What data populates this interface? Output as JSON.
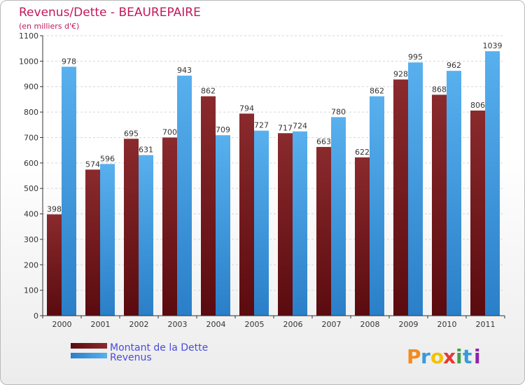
{
  "chart_data": {
    "type": "bar",
    "title": "Revenus/Dette - BEAUREPAIRE",
    "subtitle": "(en milliers d'€)",
    "categories": [
      "2000",
      "2001",
      "2002",
      "2003",
      "2004",
      "2005",
      "2006",
      "2007",
      "2008",
      "2009",
      "2010",
      "2011"
    ],
    "series": [
      {
        "name": "Montant de la Dette",
        "color": "#7a1f22",
        "values": [
          398,
          574,
          695,
          700,
          862,
          794,
          717,
          663,
          622,
          928,
          868,
          806
        ]
      },
      {
        "name": "Revenus",
        "color": "#4aa3e6",
        "values": [
          978,
          596,
          631,
          943,
          709,
          727,
          724,
          780,
          862,
          995,
          962,
          1039
        ]
      }
    ],
    "ylim": [
      0,
      1100
    ],
    "yticks": [
      0,
      100,
      200,
      300,
      400,
      500,
      600,
      700,
      800,
      900,
      1000,
      1100
    ],
    "grid": true,
    "legend_position": "bottom-left"
  },
  "brand": {
    "logo_letters": [
      "P",
      "r",
      "o",
      "x",
      "i",
      "t",
      "i"
    ]
  },
  "colors": {
    "title": "#c2185b",
    "legend_text": "#4a4ae0",
    "axis": "#333333"
  }
}
